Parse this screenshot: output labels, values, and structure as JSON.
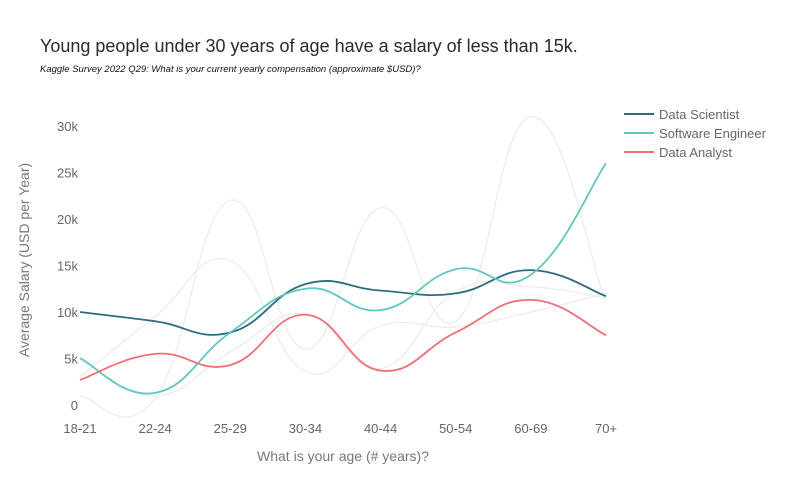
{
  "chart_data": {
    "type": "line",
    "title": "Young people under 30 years of age have a salary of less than 15k.",
    "subtitle": "Kaggle Survey 2022 Q29: What is your current yearly compensation (approximate $USD)?",
    "xlabel": "What is your age (# years)?",
    "ylabel": "Average Salary (USD per Year)",
    "categories": [
      "18-21",
      "22-24",
      "25-29",
      "30-34",
      "40-44",
      "50-54",
      "60-69",
      "70+"
    ],
    "ylim": [
      0,
      31500
    ],
    "yticks": [
      0,
      5000,
      10000,
      15000,
      20000,
      25000,
      30000
    ],
    "ytick_labels": [
      "0",
      "5k",
      "10k",
      "15k",
      "20k",
      "25k",
      "30k"
    ],
    "legend_position": "top-right",
    "grid": false,
    "series": [
      {
        "name": "Data Scientist",
        "color": "#2f6b80",
        "values": [
          10000,
          9000,
          7800,
          13000,
          12300,
          12000,
          14500,
          11700
        ]
      },
      {
        "name": "Software Engineer",
        "color": "#5fc8c0",
        "values": [
          5000,
          1300,
          7800,
          12500,
          10200,
          14600,
          14000,
          26000
        ]
      },
      {
        "name": "Data Analyst",
        "color": "#ef6f78",
        "values": [
          2700,
          5500,
          4300,
          9700,
          3700,
          7800,
          11300,
          7500
        ]
      }
    ],
    "background_series": [
      {
        "color": "#ececec",
        "values": [
          1000,
          700,
          22000,
          6000,
          21200,
          9000,
          31000,
          11000
        ]
      },
      {
        "color": "#ececec",
        "values": [
          3000,
          9500,
          15500,
          3600,
          8500,
          8400,
          10000,
          12000
        ]
      },
      {
        "color": "#ececec",
        "values": [
          5200,
          1000,
          5700,
          9800,
          3900,
          12200,
          12700,
          11500
        ]
      }
    ]
  }
}
